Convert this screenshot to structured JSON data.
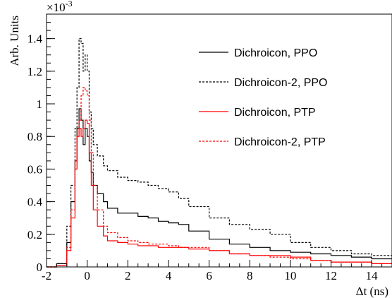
{
  "chart_data": {
    "type": "line",
    "xlabel": "Δt (ns)",
    "ylabel": "Arb. Units",
    "multiplier": "×10",
    "multiplier_exp": "-3",
    "xlim": [
      -2,
      15
    ],
    "ylim": [
      0,
      0.00155
    ],
    "xticks": [
      -2,
      0,
      2,
      4,
      6,
      8,
      10,
      12,
      14
    ],
    "xtick_labels": [
      "-2",
      "0",
      "2",
      "4",
      "6",
      "8",
      "10",
      "12",
      "14"
    ],
    "yticks": [
      0,
      0.0002,
      0.0004,
      0.0006,
      0.0008,
      0.001,
      0.0012,
      0.0014
    ],
    "ytick_labels": [
      "0",
      "0.2",
      "0.4",
      "0.6",
      "0.8",
      "1",
      "1.2",
      "1.4"
    ],
    "grid": false,
    "legend_position": "top-right",
    "series": [
      {
        "name": "Dichroicon, PPO",
        "color": "#000000",
        "dash": "solid",
        "x": [
          -2.0,
          -1.5,
          -1.0,
          -0.8,
          -0.6,
          -0.5,
          -0.4,
          -0.3,
          -0.2,
          -0.1,
          0.0,
          0.1,
          0.2,
          0.3,
          0.5,
          0.8,
          1.0,
          1.5,
          2.0,
          2.5,
          3.0,
          3.5,
          4.0,
          4.5,
          5.0,
          6.0,
          7.0,
          8.0,
          9.0,
          10.0,
          11.0,
          12.0,
          13.0,
          14.0,
          15.0
        ],
        "y": [
          0.0,
          2e-05,
          0.00015,
          0.0004,
          0.00065,
          0.00085,
          0.00097,
          0.0009,
          0.00075,
          0.00085,
          0.0008,
          0.00065,
          0.00058,
          0.0005,
          0.00045,
          0.0004,
          0.00036,
          0.00033,
          0.00033,
          0.00031,
          0.0003,
          0.00028,
          0.00027,
          0.00026,
          0.00022,
          0.00017,
          0.00014,
          0.00012,
          0.0001,
          9e-05,
          8e-05,
          7e-05,
          6e-05,
          5e-05,
          5e-05
        ]
      },
      {
        "name": "Dichroicon-2, PPO",
        "color": "#000000",
        "dash": "dashed",
        "x": [
          -2.0,
          -1.5,
          -1.0,
          -0.8,
          -0.6,
          -0.5,
          -0.4,
          -0.3,
          -0.2,
          -0.1,
          0.0,
          0.1,
          0.2,
          0.3,
          0.5,
          0.8,
          1.0,
          1.5,
          2.0,
          2.5,
          3.0,
          3.5,
          4.0,
          4.5,
          5.0,
          6.0,
          7.0,
          8.0,
          9.0,
          10.0,
          11.0,
          12.0,
          13.0,
          14.0,
          15.0
        ],
        "y": [
          0.0,
          2e-05,
          0.00025,
          0.0005,
          0.00085,
          0.0011,
          0.0014,
          0.00137,
          0.0012,
          0.0013,
          0.0012,
          0.00095,
          0.00085,
          0.00075,
          0.00068,
          0.00062,
          0.00059,
          0.00055,
          0.00053,
          0.00052,
          0.0005,
          0.00048,
          0.00046,
          0.00042,
          0.00037,
          0.0003,
          0.00026,
          0.00023,
          0.0002,
          0.00015,
          0.00012,
          0.0001,
          8e-05,
          7e-05,
          6e-05
        ]
      },
      {
        "name": "Dichroicon, PTP",
        "color": "#ff0000",
        "dash": "solid",
        "x": [
          -2.0,
          -1.5,
          -1.0,
          -0.8,
          -0.6,
          -0.5,
          -0.4,
          -0.3,
          -0.2,
          -0.1,
          0.0,
          0.1,
          0.2,
          0.3,
          0.5,
          0.8,
          1.0,
          1.5,
          2.0,
          2.5,
          3.0,
          3.5,
          4.0,
          4.5,
          5.0,
          6.0,
          7.0,
          8.0,
          9.0,
          10.0,
          11.0,
          12.0,
          13.0,
          14.0,
          15.0
        ],
        "y": [
          0.0,
          1e-05,
          0.0001,
          0.0003,
          0.0006,
          0.0008,
          0.00085,
          0.0008,
          0.00085,
          0.0009,
          0.00088,
          0.0007,
          0.0005,
          0.00035,
          0.00025,
          0.00019,
          0.00016,
          0.00015,
          0.00014,
          0.00013,
          0.00013,
          0.00012,
          0.00012,
          0.00012,
          0.00011,
          0.0001,
          8e-05,
          7e-05,
          7e-05,
          6e-05,
          4e-05,
          3e-05,
          3e-05,
          2e-05,
          2e-05
        ]
      },
      {
        "name": "Dichroicon-2, PTP",
        "color": "#ff0000",
        "dash": "dashed",
        "x": [
          -2.0,
          -1.5,
          -1.0,
          -0.8,
          -0.6,
          -0.5,
          -0.4,
          -0.3,
          -0.2,
          -0.1,
          0.0,
          0.1,
          0.2,
          0.3,
          0.5,
          0.8,
          1.0,
          1.5,
          2.0,
          2.5,
          3.0,
          3.5,
          4.0,
          4.5,
          5.0,
          6.0,
          7.0,
          8.0,
          9.0,
          10.0,
          11.0,
          12.0,
          13.0,
          14.0,
          15.0
        ],
        "y": [
          0.0,
          1e-05,
          0.00012,
          0.00035,
          0.00065,
          0.0008,
          0.0009,
          0.00105,
          0.0011,
          0.00108,
          0.00105,
          0.0009,
          0.0007,
          0.0005,
          0.00035,
          0.00025,
          0.00021,
          0.00018,
          0.00016,
          0.00015,
          0.00014,
          0.00014,
          0.00013,
          0.00012,
          0.00012,
          0.0001,
          8e-05,
          7e-05,
          6e-05,
          5e-05,
          4e-05,
          3e-05,
          3e-05,
          2e-05,
          2e-05
        ]
      }
    ]
  }
}
